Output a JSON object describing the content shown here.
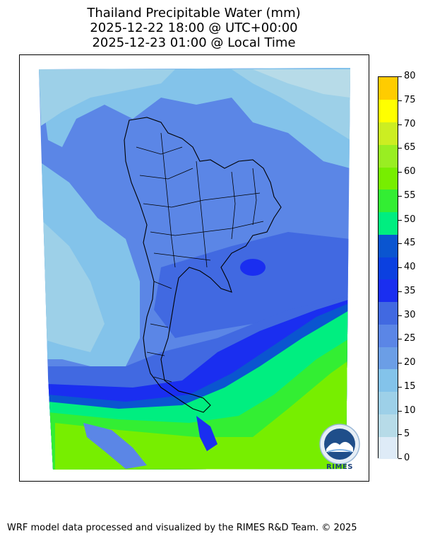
{
  "title": {
    "line1": "Thailand Precipitable Water (mm)",
    "line2": "2025-12-22 18:00 @ UTC+00:00",
    "line3": "2025-12-23 01:00 @ Local Time"
  },
  "colorbar": {
    "levels": [
      0,
      5,
      10,
      15,
      20,
      25,
      30,
      35,
      40,
      45,
      50,
      55,
      60,
      65,
      70,
      75,
      80
    ],
    "labels": [
      "0",
      "5",
      "10",
      "15",
      "20",
      "25",
      "30",
      "35",
      "40",
      "45",
      "50",
      "55",
      "60",
      "65",
      "70",
      "75",
      "80"
    ],
    "colors": [
      "#deebf7",
      "#b7dbe8",
      "#9dd0e8",
      "#83c3ea",
      "#6b9ee6",
      "#5b86e6",
      "#4169e1",
      "#1a2ef0",
      "#0b40e0",
      "#0a55d0",
      "#00ee80",
      "#33ee33",
      "#77ee00",
      "#99ee22",
      "#ccee22",
      "#ffff00",
      "#ffcc00"
    ]
  },
  "logo": {
    "label": "RIMES",
    "icon": "rimes-globe-logo"
  },
  "footer": {
    "credit": "WRF model data processed and visualized by the RIMES R&D Team. © 2025"
  }
}
